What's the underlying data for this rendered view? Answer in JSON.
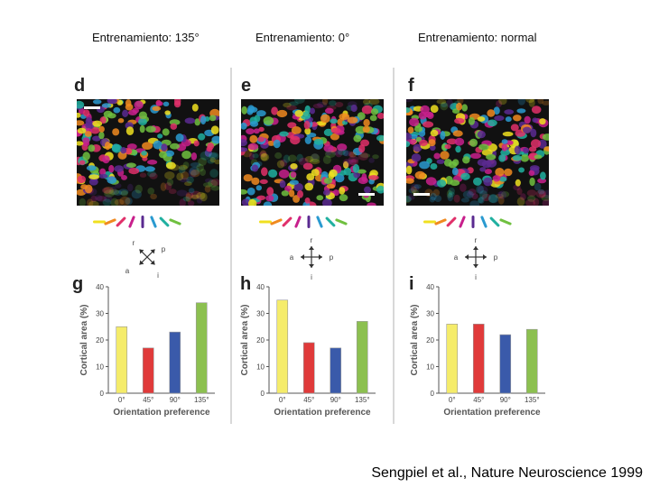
{
  "headers": [
    "Entrenamiento: 135°",
    "Entrenamiento: 0°",
    "Entrenamiento: normal"
  ],
  "citation": "Sengpiel et al., Nature Neuroscience 1999",
  "panels": {
    "map_letters": [
      "d",
      "e",
      "f"
    ],
    "chart_letters": [
      "g",
      "h",
      "i"
    ]
  },
  "orientation_bar_colors": [
    "#f0e020",
    "#f08a20",
    "#e0306a",
    "#c8208c",
    "#5a2a90",
    "#2a9ad0",
    "#20b0a0",
    "#70c040"
  ],
  "axes_legends": [
    {
      "labels": [
        "r",
        "p",
        "a",
        "i"
      ]
    },
    {
      "labels": [
        "r",
        "a",
        "p",
        "i"
      ]
    },
    {
      "labels": [
        "r",
        "a",
        "p",
        "i"
      ]
    }
  ],
  "series_colors": [
    "#f5ec6a",
    "#e03a3a",
    "#3a5aaa",
    "#8cc050"
  ],
  "chart_data": [
    {
      "type": "bar",
      "categories": [
        "0°",
        "45°",
        "90°",
        "135°"
      ],
      "values": [
        25,
        17,
        23,
        34
      ],
      "xlabel": "Orientation preference",
      "ylabel": "Cortical area (%)",
      "ylim": [
        0,
        40
      ],
      "yticks": [
        "0",
        "10",
        "20",
        "30",
        "40"
      ]
    },
    {
      "type": "bar",
      "categories": [
        "0°",
        "45°",
        "90°",
        "135°"
      ],
      "values": [
        35,
        19,
        17,
        27
      ],
      "xlabel": "Orientation preference",
      "ylabel": "Cortical area (%)",
      "ylim": [
        0,
        40
      ],
      "yticks": [
        "0",
        "10",
        "20",
        "30",
        "40"
      ]
    },
    {
      "type": "bar",
      "categories": [
        "0°",
        "45°",
        "90°",
        "135°"
      ],
      "values": [
        26,
        26,
        22,
        24
      ],
      "xlabel": "Orientation preference",
      "ylabel": "Cortical area (%)",
      "ylim": [
        0,
        40
      ],
      "yticks": [
        "0",
        "10",
        "20",
        "30",
        "40"
      ]
    }
  ]
}
